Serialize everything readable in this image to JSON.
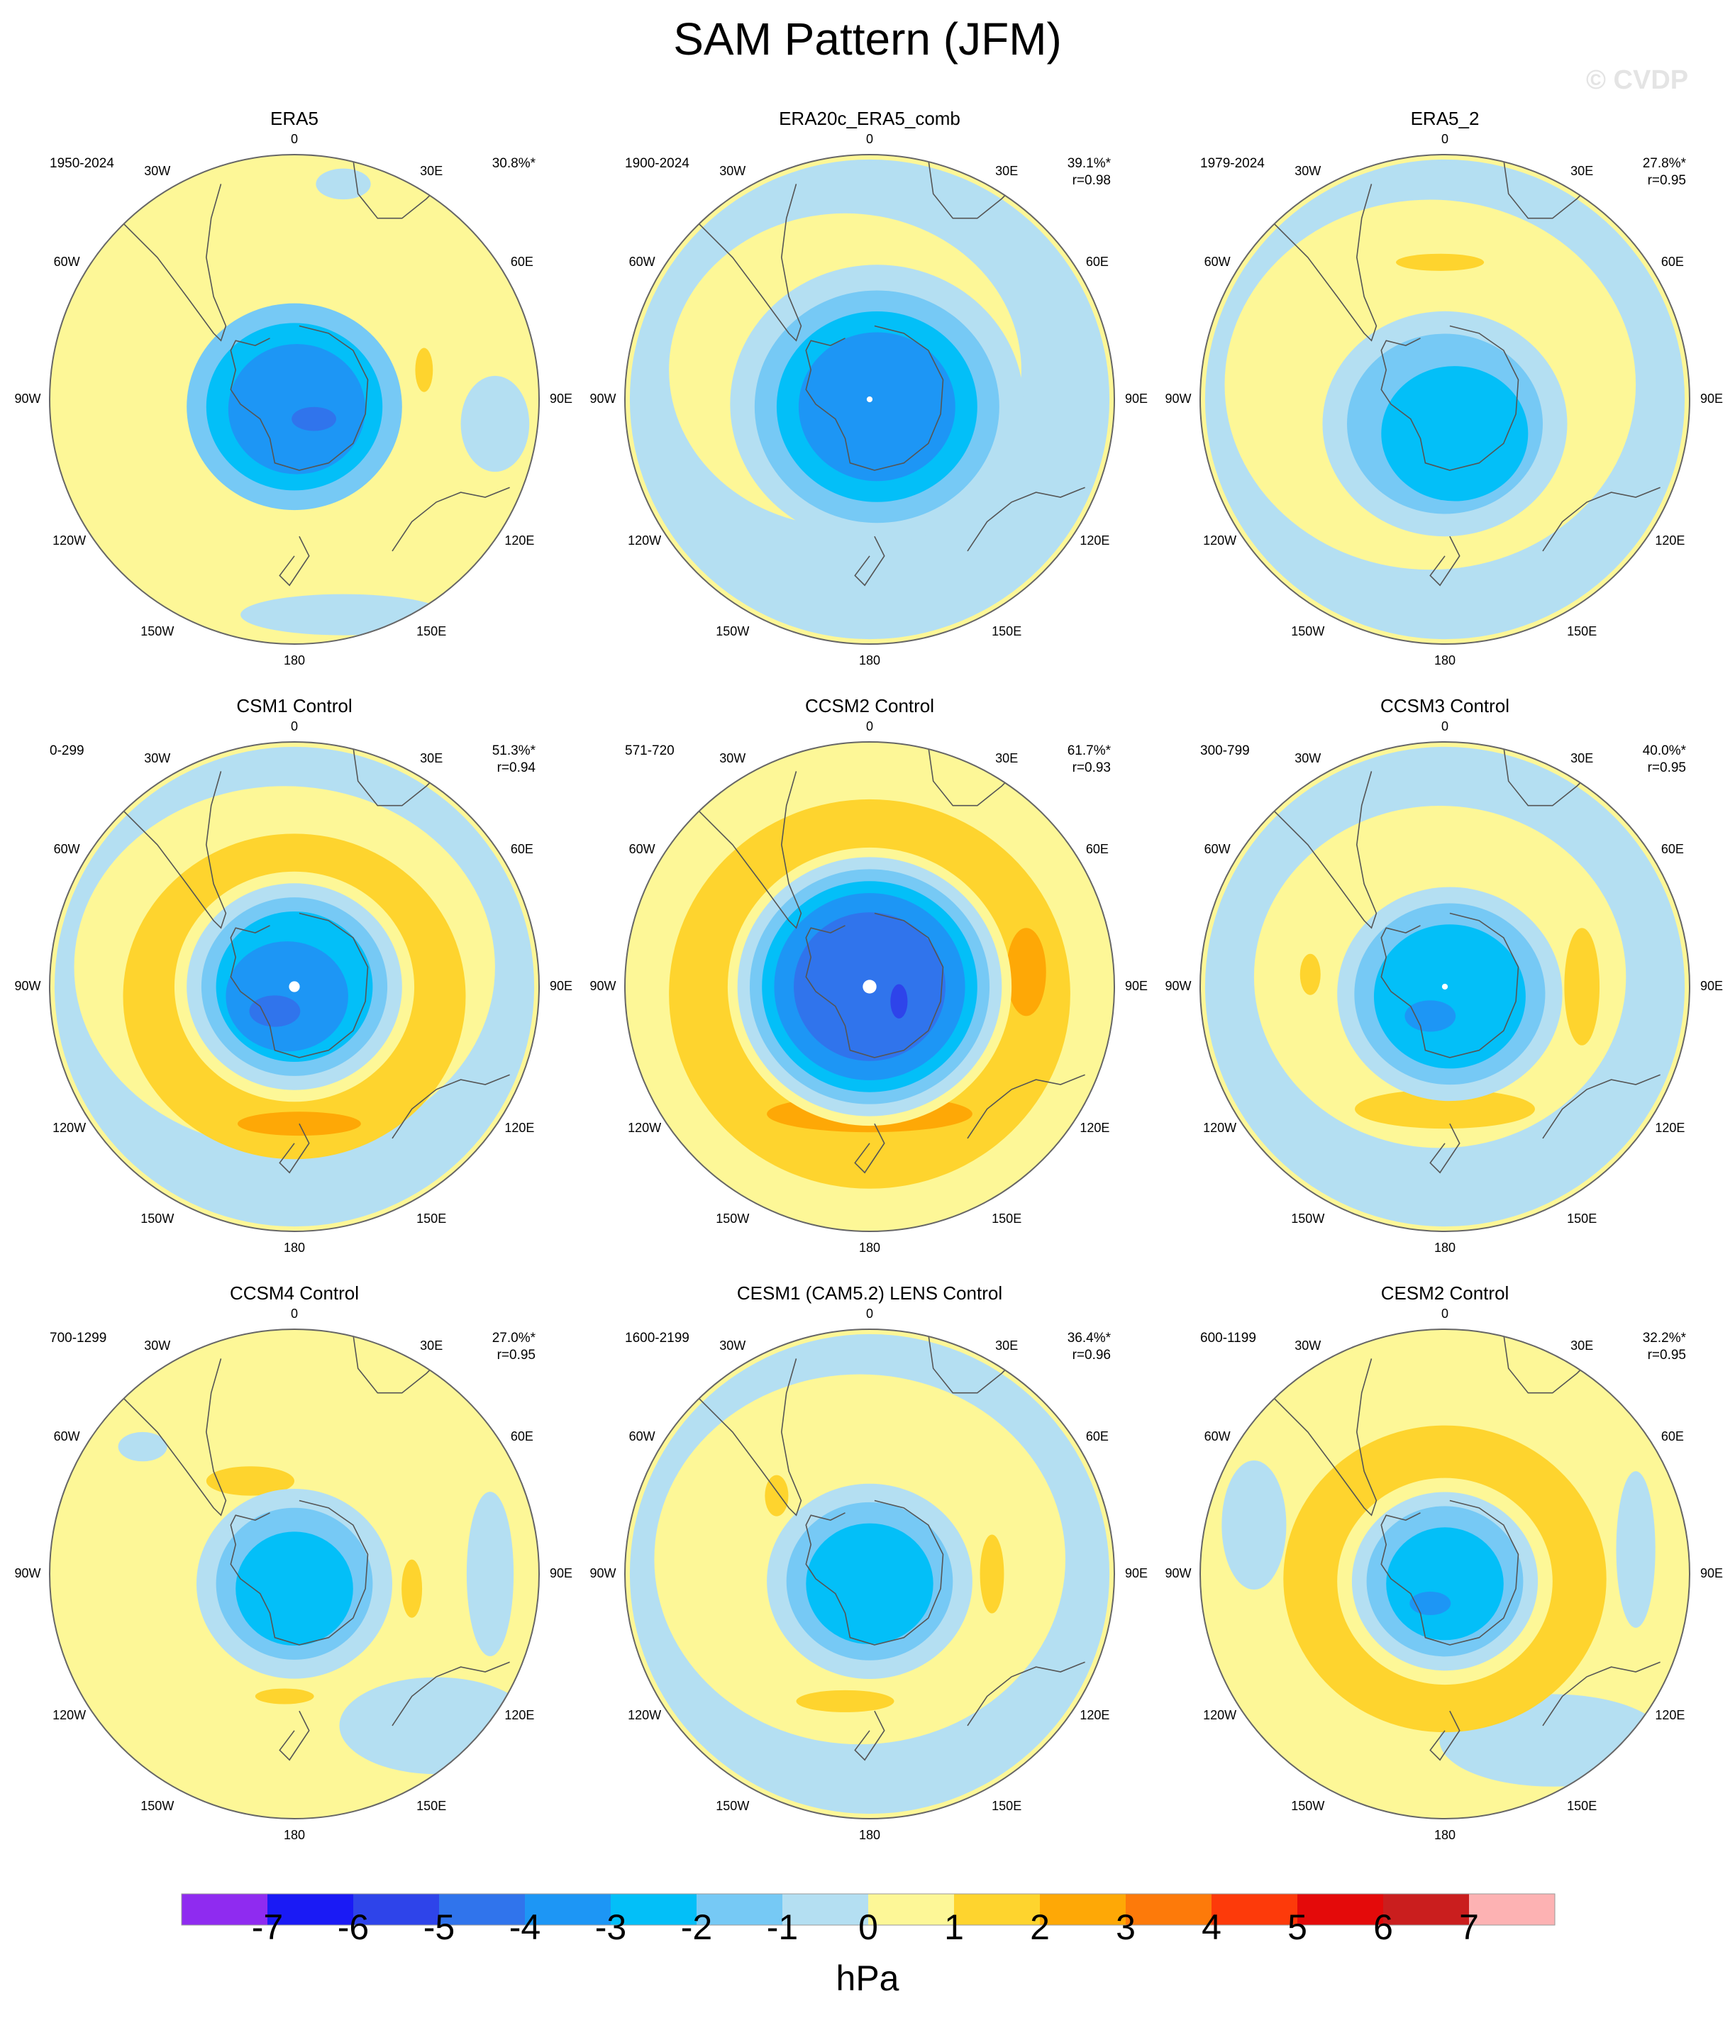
{
  "title": "SAM Pattern (JFM)",
  "watermark": "© CVDP",
  "axis_labels": [
    "0",
    "30E",
    "60E",
    "90E",
    "120E",
    "150E",
    "180",
    "150W",
    "120W",
    "90W",
    "60W",
    "30W"
  ],
  "panels": [
    {
      "name": "ERA5",
      "period": "1950-2024",
      "pct": "30.8%*",
      "r": "",
      "center_dot": 0,
      "levels": [
        {
          "v": -2,
          "r": 0.44,
          "dx": 0.0,
          "dy": 0.03,
          "a": 1.0,
          "b": 0.96
        },
        {
          "v": -3,
          "r": 0.36,
          "dx": 0.0,
          "dy": 0.03,
          "a": 1.0,
          "b": 0.95
        },
        {
          "v": -4,
          "r": 0.28,
          "dx": 0.01,
          "dy": 0.04,
          "a": 1.0,
          "b": 0.95
        },
        {
          "v": -5,
          "r": 0.07,
          "dx": 0.08,
          "dy": 0.08,
          "a": 1.3,
          "b": 0.7
        },
        {
          "v": -1,
          "r": 0.28,
          "dx": 0.2,
          "dy": 0.88,
          "a": 1.5,
          "b": 0.3
        },
        {
          "v": -1,
          "r": 0.14,
          "dx": 0.82,
          "dy": 0.1,
          "a": 1.0,
          "b": 1.4
        },
        {
          "v": -1,
          "r": 0.14,
          "dx": 0.2,
          "dy": -0.88,
          "a": 0.8,
          "b": 0.45
        },
        {
          "v": 1,
          "r": 0.06,
          "dx": 0.53,
          "dy": -0.12,
          "a": 0.6,
          "b": 1.5
        }
      ]
    },
    {
      "name": "ERA20c_ERA5_comb",
      "period": "1900-2024",
      "pct": "39.1%*",
      "r": "r=0.98",
      "center_dot": 0.012,
      "levels": [
        {
          "v": -1,
          "r": 0.98,
          "dx": 0.0,
          "dy": 0.0,
          "a": 1.0,
          "b": 1.0
        },
        {
          "v": 0,
          "r": 0.8,
          "dx": -0.1,
          "dy": -0.12,
          "a": 0.9,
          "b": 0.8
        },
        {
          "v": -1,
          "r": 0.6,
          "dx": 0.03,
          "dy": 0.02,
          "a": 1.0,
          "b": 0.95
        },
        {
          "v": -2,
          "r": 0.5,
          "dx": 0.03,
          "dy": 0.03,
          "a": 1.0,
          "b": 0.95
        },
        {
          "v": -3,
          "r": 0.41,
          "dx": 0.03,
          "dy": 0.03,
          "a": 1.0,
          "b": 0.95
        },
        {
          "v": -4,
          "r": 0.32,
          "dx": 0.03,
          "dy": 0.03,
          "a": 1.0,
          "b": 0.95
        }
      ]
    },
    {
      "name": "ERA5_2",
      "period": "1979-2024",
      "pct": "27.8%*",
      "r": "r=0.95",
      "center_dot": 0,
      "levels": [
        {
          "v": -1,
          "r": 0.98,
          "dx": 0.0,
          "dy": 0.0,
          "a": 1.0,
          "b": 1.0
        },
        {
          "v": 0,
          "r": 0.84,
          "dx": -0.06,
          "dy": -0.06,
          "a": 1.0,
          "b": 0.9
        },
        {
          "v": -1,
          "r": 0.5,
          "dx": 0.0,
          "dy": 0.1,
          "a": 1.0,
          "b": 0.92
        },
        {
          "v": -2,
          "r": 0.4,
          "dx": 0.0,
          "dy": 0.1,
          "a": 1.0,
          "b": 0.92
        },
        {
          "v": -3,
          "r": 0.3,
          "dx": 0.04,
          "dy": 0.14,
          "a": 1.0,
          "b": 0.92
        },
        {
          "v": 1,
          "r": 0.1,
          "dx": -0.02,
          "dy": -0.56,
          "a": 1.8,
          "b": 0.35
        }
      ]
    },
    {
      "name": "CSM1 Control",
      "period": "0-299",
      "pct": "51.3%*",
      "r": "r=0.94",
      "center_dot": 0.022,
      "levels": [
        {
          "v": -1,
          "r": 0.98,
          "dx": 0.0,
          "dy": 0.0,
          "a": 1.0,
          "b": 1.0
        },
        {
          "v": 0,
          "r": 0.86,
          "dx": -0.04,
          "dy": -0.08,
          "a": 1.0,
          "b": 0.86
        },
        {
          "v": 1,
          "r": 0.7,
          "dx": 0.0,
          "dy": 0.04,
          "a": 1.0,
          "b": 0.95
        },
        {
          "v": 0,
          "r": 0.49,
          "dx": 0.0,
          "dy": 0.0,
          "a": 1.0,
          "b": 0.96
        },
        {
          "v": -1,
          "r": 0.44,
          "dx": 0.0,
          "dy": 0.0,
          "a": 1.0,
          "b": 0.96
        },
        {
          "v": -2,
          "r": 0.38,
          "dx": 0.0,
          "dy": 0.0,
          "a": 1.0,
          "b": 0.96
        },
        {
          "v": -3,
          "r": 0.32,
          "dx": 0.0,
          "dy": 0.0,
          "a": 1.0,
          "b": 0.96
        },
        {
          "v": -4,
          "r": 0.25,
          "dx": -0.03,
          "dy": 0.04,
          "a": 1.0,
          "b": 0.9
        },
        {
          "v": -5,
          "r": 0.08,
          "dx": -0.08,
          "dy": 0.1,
          "a": 1.3,
          "b": 0.8
        },
        {
          "v": 2,
          "r": 0.14,
          "dx": 0.02,
          "dy": 0.56,
          "a": 1.8,
          "b": 0.35
        }
      ]
    },
    {
      "name": "CCSM2 Control",
      "period": "571-720",
      "pct": "61.7%*",
      "r": "r=0.93",
      "center_dot": 0.028,
      "levels": [
        {
          "v": 0,
          "r": 0.98,
          "dx": 0.0,
          "dy": 0.0,
          "a": 1.0,
          "b": 1.0
        },
        {
          "v": 1,
          "r": 0.82,
          "dx": 0.0,
          "dy": 0.03,
          "a": 1.0,
          "b": 0.97
        },
        {
          "v": 2,
          "r": 0.15,
          "dx": 0.0,
          "dy": 0.52,
          "a": 2.8,
          "b": 0.5
        },
        {
          "v": 2,
          "r": 0.09,
          "dx": 0.64,
          "dy": -0.06,
          "a": 0.9,
          "b": 2.0
        },
        {
          "v": 0,
          "r": 0.58,
          "dx": 0.0,
          "dy": 0.0,
          "a": 1.0,
          "b": 0.98
        },
        {
          "v": -1,
          "r": 0.54,
          "dx": 0.0,
          "dy": 0.0,
          "a": 1.0,
          "b": 0.98
        },
        {
          "v": -2,
          "r": 0.49,
          "dx": 0.0,
          "dy": 0.0,
          "a": 1.0,
          "b": 0.98
        },
        {
          "v": -3,
          "r": 0.44,
          "dx": 0.0,
          "dy": 0.0,
          "a": 1.0,
          "b": 0.98
        },
        {
          "v": -4,
          "r": 0.39,
          "dx": 0.0,
          "dy": 0.0,
          "a": 1.0,
          "b": 0.98
        },
        {
          "v": -5,
          "r": 0.31,
          "dx": 0.0,
          "dy": 0.0,
          "a": 1.0,
          "b": 0.98
        },
        {
          "v": -6,
          "r": 0.05,
          "dx": 0.12,
          "dy": 0.06,
          "a": 0.7,
          "b": 1.4
        }
      ]
    },
    {
      "name": "CCSM3 Control",
      "period": "300-799",
      "pct": "40.0%*",
      "r": "r=0.95",
      "center_dot": 0.012,
      "levels": [
        {
          "v": -1,
          "r": 0.98,
          "dx": 0.0,
          "dy": 0.0,
          "a": 1.0,
          "b": 1.0
        },
        {
          "v": 0,
          "r": 0.76,
          "dx": -0.02,
          "dy": -0.04,
          "a": 1.0,
          "b": 0.92
        },
        {
          "v": 1,
          "r": 0.16,
          "dx": 0.0,
          "dy": 0.5,
          "a": 2.3,
          "b": 0.5
        },
        {
          "v": 1,
          "r": 0.08,
          "dx": 0.56,
          "dy": 0.0,
          "a": 0.9,
          "b": 3.0
        },
        {
          "v": 1,
          "r": 0.06,
          "dx": -0.55,
          "dy": -0.05,
          "a": 0.7,
          "b": 1.4
        },
        {
          "v": -1,
          "r": 0.46,
          "dx": 0.02,
          "dy": 0.03,
          "a": 1.0,
          "b": 0.95
        },
        {
          "v": -2,
          "r": 0.39,
          "dx": 0.02,
          "dy": 0.03,
          "a": 1.0,
          "b": 0.95
        },
        {
          "v": -3,
          "r": 0.31,
          "dx": 0.02,
          "dy": 0.04,
          "a": 1.0,
          "b": 0.95
        },
        {
          "v": -4,
          "r": 0.08,
          "dx": -0.06,
          "dy": 0.12,
          "a": 1.3,
          "b": 0.8
        }
      ]
    },
    {
      "name": "CCSM4 Control",
      "period": "700-1299",
      "pct": "27.0%*",
      "r": "r=0.95",
      "center_dot": 0,
      "levels": [
        {
          "v": -1,
          "r": 0.36,
          "dx": 0.58,
          "dy": 0.62,
          "a": 1.1,
          "b": 0.55
        },
        {
          "v": -1,
          "r": 0.1,
          "dx": -0.62,
          "dy": -0.52,
          "a": 1.0,
          "b": 0.6
        },
        {
          "v": -1,
          "r": 0.24,
          "dx": 0.8,
          "dy": 0.0,
          "a": 0.4,
          "b": 1.4
        },
        {
          "v": 1,
          "r": 0.1,
          "dx": -0.18,
          "dy": -0.38,
          "a": 1.8,
          "b": 0.6
        },
        {
          "v": 1,
          "r": 0.07,
          "dx": 0.48,
          "dy": 0.06,
          "a": 0.6,
          "b": 1.7
        },
        {
          "v": 1,
          "r": 0.08,
          "dx": -0.04,
          "dy": 0.5,
          "a": 1.5,
          "b": 0.4
        },
        {
          "v": -1,
          "r": 0.4,
          "dx": 0.0,
          "dy": 0.04,
          "a": 1.0,
          "b": 0.97
        },
        {
          "v": -2,
          "r": 0.32,
          "dx": 0.0,
          "dy": 0.04,
          "a": 1.0,
          "b": 0.97
        },
        {
          "v": -3,
          "r": 0.24,
          "dx": 0.0,
          "dy": 0.06,
          "a": 1.0,
          "b": 0.97
        }
      ]
    },
    {
      "name": "CESM1 (CAM5.2) LENS Control",
      "period": "1600-2199",
      "pct": "36.4%*",
      "r": "r=0.96",
      "center_dot": 0,
      "levels": [
        {
          "v": -1,
          "r": 0.98,
          "dx": 0.0,
          "dy": 0.0,
          "a": 1.0,
          "b": 1.0
        },
        {
          "v": 0,
          "r": 0.84,
          "dx": -0.04,
          "dy": -0.06,
          "a": 1.0,
          "b": 0.9
        },
        {
          "v": 1,
          "r": 0.1,
          "dx": -0.1,
          "dy": 0.52,
          "a": 2.0,
          "b": 0.45
        },
        {
          "v": 1,
          "r": 0.07,
          "dx": 0.5,
          "dy": 0.0,
          "a": 0.7,
          "b": 2.3
        },
        {
          "v": 1,
          "r": 0.06,
          "dx": -0.38,
          "dy": -0.32,
          "a": 0.8,
          "b": 1.4
        },
        {
          "v": -1,
          "r": 0.42,
          "dx": 0.0,
          "dy": 0.03,
          "a": 1.0,
          "b": 0.95
        },
        {
          "v": -2,
          "r": 0.34,
          "dx": 0.0,
          "dy": 0.03,
          "a": 1.0,
          "b": 0.95
        },
        {
          "v": -3,
          "r": 0.26,
          "dx": 0.0,
          "dy": 0.04,
          "a": 1.0,
          "b": 0.95
        }
      ]
    },
    {
      "name": "CESM2 Control",
      "period": "600-1199",
      "pct": "32.2%*",
      "r": "r=0.95",
      "center_dot": 0,
      "levels": [
        {
          "v": -1,
          "r": 0.22,
          "dx": -0.78,
          "dy": -0.2,
          "a": 0.6,
          "b": 1.2
        },
        {
          "v": -1,
          "r": 0.42,
          "dx": 0.44,
          "dy": 0.68,
          "a": 1.1,
          "b": 0.45
        },
        {
          "v": -1,
          "r": 0.2,
          "dx": 0.78,
          "dy": -0.1,
          "a": 0.4,
          "b": 1.6
        },
        {
          "v": 1,
          "r": 0.66,
          "dx": 0.0,
          "dy": 0.02,
          "a": 1.0,
          "b": 0.95
        },
        {
          "v": 0,
          "r": 0.44,
          "dx": 0.0,
          "dy": 0.03,
          "a": 1.0,
          "b": 0.96
        },
        {
          "v": -1,
          "r": 0.38,
          "dx": 0.0,
          "dy": 0.03,
          "a": 1.0,
          "b": 0.96
        },
        {
          "v": -2,
          "r": 0.32,
          "dx": 0.0,
          "dy": 0.03,
          "a": 1.0,
          "b": 0.96
        },
        {
          "v": -3,
          "r": 0.24,
          "dx": 0.0,
          "dy": 0.04,
          "a": 1.0,
          "b": 0.96
        },
        {
          "v": -4,
          "r": 0.06,
          "dx": -0.06,
          "dy": 0.12,
          "a": 1.4,
          "b": 0.8
        }
      ]
    }
  ],
  "colorbar": {
    "unit": "hPa",
    "ticks": [
      "-7",
      "-6",
      "-5",
      "-4",
      "-3",
      "-2",
      "-1",
      "0",
      "1",
      "2",
      "3",
      "4",
      "5",
      "6",
      "7"
    ],
    "colors": [
      "#8f2bf0",
      "#1a1af5",
      "#2e44ea",
      "#3074ec",
      "#1d96f5",
      "#03bff8",
      "#76c9f5",
      "#b4dff2",
      "#fdf797",
      "#fed42e",
      "#fea806",
      "#fd7a0a",
      "#fd3a0a",
      "#e40a0a",
      "#ca1e1e",
      "#fdb2b3"
    ]
  }
}
